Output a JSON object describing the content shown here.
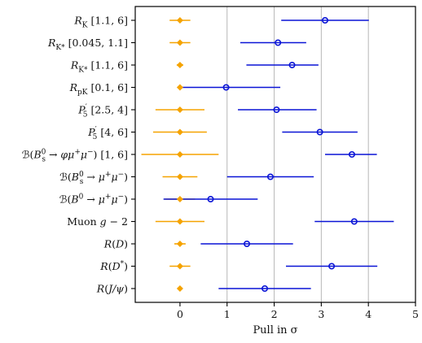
{
  "chart_data": {
    "type": "scatter",
    "title": "",
    "xlabel": "Pull in σ",
    "ylabel": "",
    "xlim": [
      -0.95,
      5.0
    ],
    "xticks": [
      0,
      1,
      2,
      3,
      4,
      5
    ],
    "grid": "vertical at x = 1, 2, 3, 4",
    "categories": [
      "R_K [1.1, 6]",
      "R_K* [0.045, 1.1]",
      "R_K* [1.1, 6]",
      "R_pK [0.1, 6]",
      "P5' [2.5, 4]",
      "P5' [4, 6]",
      "B(Bs0 → φμ+μ−) [1, 6]",
      "B(Bs0 → μ+μ−)",
      "B(B0 → μ+μ−)",
      "Muon g − 2",
      "R(D)",
      "R(D*)",
      "R(J/ψ)"
    ],
    "series": [
      {
        "name": "",
        "color": "#f5a300",
        "marker": "diamond",
        "points": [
          {
            "x": 0.0,
            "xerr": [
              0.22,
              0.22
            ]
          },
          {
            "x": 0.0,
            "xerr": [
              0.22,
              0.22
            ]
          },
          {
            "x": 0.0,
            "xerr": [
              0.07,
              0.07
            ]
          },
          {
            "x": 0.0,
            "xerr": [
              0.05,
              0.05
            ]
          },
          {
            "x": 0.0,
            "xerr": [
              0.52,
              0.52
            ]
          },
          {
            "x": 0.0,
            "xerr": [
              0.57,
              0.57
            ]
          },
          {
            "x": 0.0,
            "xerr": [
              0.82,
              0.82
            ]
          },
          {
            "x": 0.0,
            "xerr": [
              0.37,
              0.37
            ]
          },
          {
            "x": 0.0,
            "xerr": [
              0.32,
              0.32
            ]
          },
          {
            "x": 0.0,
            "xerr": [
              0.52,
              0.52
            ]
          },
          {
            "x": 0.0,
            "xerr": [
              0.12,
              0.12
            ]
          },
          {
            "x": 0.0,
            "xerr": [
              0.22,
              0.22
            ]
          },
          {
            "x": 0.0,
            "xerr": [
              0.04,
              0.04
            ]
          }
        ]
      },
      {
        "name": "",
        "color": "#0a14d6",
        "marker": "circle",
        "points": [
          {
            "x": 3.08,
            "xerr": [
              0.93,
              0.93
            ]
          },
          {
            "x": 2.08,
            "xerr": [
              0.8,
              0.6
            ]
          },
          {
            "x": 2.38,
            "xerr": [
              0.97,
              0.56
            ]
          },
          {
            "x": 0.98,
            "xerr": [
              0.97,
              1.15
            ]
          },
          {
            "x": 2.05,
            "xerr": [
              0.82,
              0.85
            ]
          },
          {
            "x": 2.97,
            "xerr": [
              0.8,
              0.8
            ]
          },
          {
            "x": 3.65,
            "xerr": [
              0.57,
              0.53
            ]
          },
          {
            "x": 1.92,
            "xerr": [
              0.92,
              0.92
            ]
          },
          {
            "x": 0.65,
            "xerr": [
              1.0,
              1.0
            ]
          },
          {
            "x": 3.7,
            "xerr": [
              0.84,
              0.84
            ]
          },
          {
            "x": 1.42,
            "xerr": [
              0.98,
              0.98
            ]
          },
          {
            "x": 3.22,
            "xerr": [
              0.97,
              0.97
            ]
          },
          {
            "x": 1.8,
            "xerr": [
              0.98,
              0.98
            ]
          }
        ]
      }
    ]
  }
}
